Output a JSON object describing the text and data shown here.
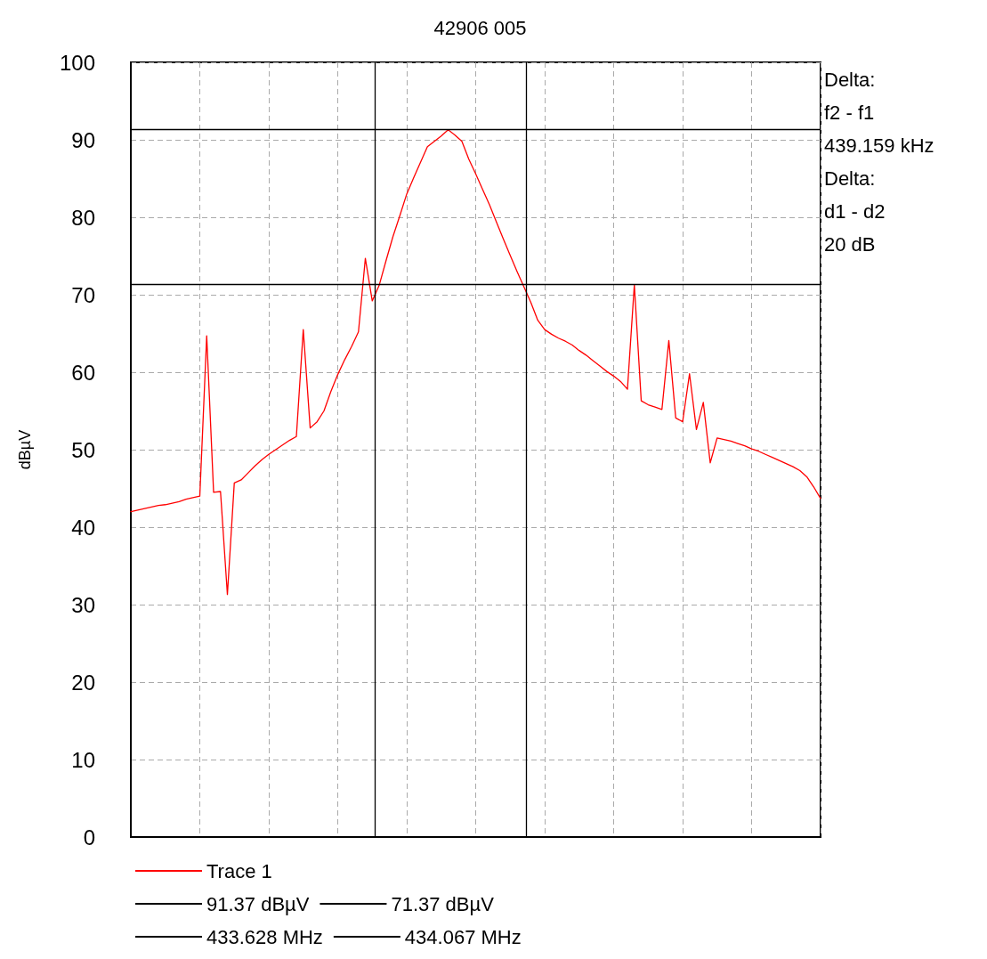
{
  "chart_data": {
    "type": "line",
    "title": "42906 005",
    "ylabel": "dBµV",
    "categories": [
      null,
      null,
      null,
      null,
      null,
      null,
      null,
      null,
      null,
      null,
      null,
      null,
      null,
      null,
      null,
      null,
      null,
      null,
      null,
      null,
      null,
      null,
      null,
      null,
      null,
      null,
      null,
      null,
      null,
      null,
      null,
      null,
      null,
      null,
      null,
      null,
      null,
      null,
      null,
      null,
      null,
      null,
      null,
      null,
      null,
      null,
      null,
      null,
      null,
      null,
      null,
      null,
      null,
      null,
      null,
      null,
      null,
      null,
      null,
      null,
      null,
      null,
      null,
      null,
      null,
      null,
      null,
      null,
      null,
      null,
      null,
      null,
      null,
      null,
      null,
      null,
      null,
      null,
      null,
      null,
      null,
      null,
      null,
      null,
      null,
      null,
      null,
      null,
      null,
      null,
      null,
      null,
      null,
      null,
      null,
      null,
      null,
      null,
      null,
      null,
      null
    ],
    "ylim": [
      0,
      100
    ],
    "yticks": [
      0,
      10,
      20,
      30,
      40,
      50,
      60,
      70,
      80,
      90,
      100
    ],
    "grid": true,
    "legend": "bottom",
    "marker": "none",
    "line_style": "solid",
    "series": [
      {
        "name": "Trace 1",
        "color": "#ff0000",
        "values": [
          42,
          42.2,
          42.4,
          42.6,
          42.8,
          42.9,
          43.1,
          43.3,
          43.6,
          43.8,
          44.0,
          64.7,
          44.5,
          44.6,
          31.3,
          45.7,
          46.1,
          47,
          47.9,
          48.7,
          49.4,
          50,
          50.6,
          51.2,
          51.7,
          65.5,
          52.8,
          53.6,
          55,
          57.5,
          59.7,
          61.6,
          63.3,
          65.2,
          74.7,
          69.2,
          71.2,
          74.4,
          77.5,
          80.2,
          83,
          85.1,
          87.1,
          89.1,
          89.8,
          90.5,
          91.3,
          90.6,
          89.8,
          87.5,
          85.6,
          83.6,
          81.6,
          79.4,
          77.2,
          75.1,
          73,
          71,
          69,
          66.7,
          65.5,
          64.9,
          64.4,
          64,
          63.5,
          62.8,
          62.2,
          61.5,
          60.8,
          60.1,
          59.5,
          58.8,
          57.8,
          71.3,
          56.3,
          55.8,
          55.5,
          55.2,
          64.1,
          54.1,
          53.6,
          59.8,
          52.6,
          56.1,
          48.3,
          51.5,
          51.3,
          51.1,
          50.8,
          50.5,
          50.1,
          49.8,
          49.4,
          49,
          48.6,
          48.2,
          47.8,
          47.3,
          46.5,
          45.2,
          43.7
        ]
      }
    ],
    "ref_lines": [
      {
        "axis": "y",
        "value": 91.37,
        "label": "91.37 dBµV",
        "color": "#000000"
      },
      {
        "axis": "y",
        "value": 71.37,
        "label": "71.37 dBµV",
        "color": "#000000"
      }
    ],
    "annotations": [
      "Delta:",
      "f2 - f1",
      "439.159 kHz",
      "Delta:",
      "d1 - d2",
      "20 dB",
      {
        "text": "433.628 MHz"
      },
      {
        "text": "434.067 MHz"
      }
    ]
  }
}
